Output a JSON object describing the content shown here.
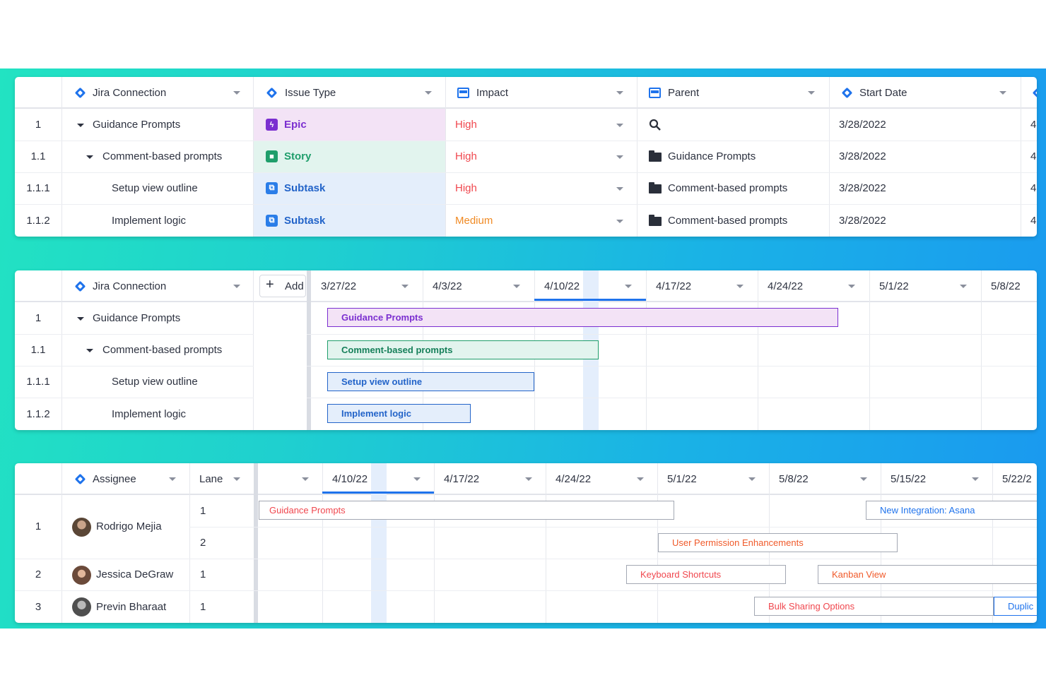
{
  "panel1": {
    "columns": [
      {
        "label": "Jira Connection",
        "icon": "jira-diamond-icon"
      },
      {
        "label": "Issue Type",
        "icon": "jira-diamond-icon"
      },
      {
        "label": "Impact",
        "icon": "single-select-column-icon"
      },
      {
        "label": "Parent",
        "icon": "single-select-column-icon"
      },
      {
        "label": "Start Date",
        "icon": "jira-diamond-icon"
      }
    ],
    "rows": [
      {
        "num": "1",
        "name": "Guidance Prompts",
        "type": "Epic",
        "impact": "High",
        "parent": "",
        "start": "3/28/2022",
        "end_partial": "4"
      },
      {
        "num": "1.1",
        "name": "Comment-based prompts",
        "type": "Story",
        "impact": "High",
        "parent": "Guidance Prompts",
        "start": "3/28/2022",
        "end_partial": "4"
      },
      {
        "num": "1.1.1",
        "name": "Setup view outline",
        "type": "Subtask",
        "impact": "High",
        "parent": "Comment-based prompts",
        "start": "3/28/2022",
        "end_partial": "4"
      },
      {
        "num": "1.1.2",
        "name": "Implement logic",
        "type": "Subtask",
        "impact": "Medium",
        "parent": "Comment-based prompts",
        "start": "3/28/2022",
        "end_partial": "4"
      }
    ],
    "colors": {
      "epic": "#7b2fd0",
      "story": "#1f9e6b",
      "subtask": "#2364c9",
      "high": "#f0474e",
      "medium": "#f08a24"
    }
  },
  "panel2": {
    "col_header": "Jira Connection",
    "add_label": "Add",
    "dates": [
      "3/27/22",
      "4/3/22",
      "4/10/22",
      "4/17/22",
      "4/24/22",
      "5/1/22",
      "5/8/22"
    ],
    "rows": [
      {
        "num": "1",
        "name": "Guidance Prompts"
      },
      {
        "num": "1.1",
        "name": "Comment-based prompts"
      },
      {
        "num": "1.1.1",
        "name": "Setup view outline"
      },
      {
        "num": "1.1.2",
        "name": "Implement logic"
      }
    ],
    "bars": [
      {
        "label": "Guidance Prompts"
      },
      {
        "label": "Comment-based prompts"
      },
      {
        "label": "Setup view outline"
      },
      {
        "label": "Implement logic"
      }
    ]
  },
  "panel3": {
    "assignee_header": "Assignee",
    "lane_header": "Lane",
    "dates": [
      "4/10/22",
      "4/17/22",
      "4/24/22",
      "5/1/22",
      "5/8/22",
      "5/15/22",
      "5/22/2"
    ],
    "people": [
      {
        "num": "1",
        "name": "Rodrigo Mejia",
        "lanes": [
          "1",
          "2"
        ]
      },
      {
        "num": "2",
        "name": "Jessica DeGraw",
        "lanes": [
          "1"
        ]
      },
      {
        "num": "3",
        "name": "Previn Bharaat",
        "lanes": [
          "1"
        ]
      }
    ],
    "bars": [
      {
        "label": "Guidance Prompts"
      },
      {
        "label": "New Integration: Asana"
      },
      {
        "label": "User Permission Enhancements"
      },
      {
        "label": "Keyboard Shortcuts"
      },
      {
        "label": "Kanban View"
      },
      {
        "label": "Bulk Sharing Options"
      },
      {
        "label": "Duplic"
      }
    ]
  }
}
